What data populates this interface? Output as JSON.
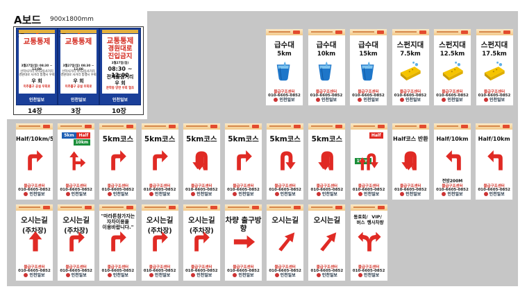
{
  "a_section": {
    "title": "A보드",
    "size": "900x1800mm",
    "boards": [
      {
        "title": "교통통제",
        "time": "3월27일(일) 08:30 ~ 12:00",
        "lines": [
          "선학사거리 학익2동사거리",
          "경원대로 사거리 통행시 우회"
        ],
        "detour": "우 회",
        "note": "미추홀구 공설 우회로",
        "caption": "14장"
      },
      {
        "title": "교통통제",
        "time": "3월27일(일) 08:30 ~ 12:00",
        "lines": [
          "선학사거리 학익2동사거리",
          "경원대로 사거리 통행시 우회"
        ],
        "detour": "우 회",
        "note": "미추홀구 공설 우회로",
        "caption": "3장"
      },
      {
        "title": "교통통제",
        "title2": "경원대로",
        "title3": "진입금지",
        "time": "3월27일(일)",
        "time_big": "08:30 ~ 12:00",
        "place": "전재울삼거리",
        "detour": "우 회",
        "note": "문학동 방면 우회 협조",
        "caption": "10장"
      }
    ],
    "footer": "인천일보"
  },
  "boards_common": {
    "org": "물급구조센터",
    "tel": "010-6605-0852",
    "footer": "인천일보"
  },
  "row1": [
    {
      "title": "급수대",
      "sub": "5km",
      "icon": "water-cup-icon"
    },
    {
      "title": "급수대",
      "sub": "10km",
      "icon": "water-cup-icon"
    },
    {
      "title": "급수대",
      "sub": "15km",
      "icon": "water-cup-icon"
    },
    {
      "title": "스펀지대",
      "sub": "7.5km",
      "icon": "sponge-icon"
    },
    {
      "title": "스펀지대",
      "sub": "12.5km",
      "icon": "sponge-icon"
    },
    {
      "title": "스펀지대",
      "sub": "17.5km",
      "icon": "sponge-icon"
    }
  ],
  "row2": [
    {
      "title": "Half/10km/5km",
      "icon": "arrow-turn-right-icon"
    },
    {
      "title": "",
      "tag1": "5km",
      "tag2": "Half",
      "tag3": "10km",
      "icon": "arrow-split-icon"
    },
    {
      "title": "5km코스",
      "icon": "arrow-turn-right-icon"
    },
    {
      "title": "5km코스",
      "icon": "arrow-turn-right-icon"
    },
    {
      "title": "5km코스",
      "icon": "arrow-u-turn-icon"
    },
    {
      "title": "5km코스",
      "icon": "arrow-turn-right-icon"
    },
    {
      "title": "5km코스",
      "icon": "arrow-u-turn-right-icon"
    },
    {
      "title": "5km코스",
      "icon": "arrow-u-turn-icon"
    },
    {
      "title": "",
      "tag1": "Half",
      "tag2": "10km",
      "icon": "arrow-double-u-icon"
    },
    {
      "title": "Half코스 반환",
      "icon": "arrow-u-turn-icon"
    },
    {
      "title": "Half/10km",
      "note": "전방200M",
      "icon": "arrow-turn-left-icon"
    },
    {
      "title": "Half/10km",
      "icon": "arrow-turn-left-icon"
    }
  ],
  "row3": [
    {
      "title": "오시는길",
      "title2": "(주차장)",
      "icon": "arrow-up-icon"
    },
    {
      "title": "오시는길",
      "title2": "(주차장)",
      "icon": "arrow-turn-right-icon"
    },
    {
      "title": "\"마라톤참가자는",
      "title2": "자차이용을",
      "title3": "이용바랍니다.\"",
      "icon": "arrow-turn-right-icon"
    },
    {
      "title": "오시는길",
      "title2": "(주차장)",
      "icon": "arrow-turn-right-icon"
    },
    {
      "title": "오시는길",
      "title2": "(주차장)",
      "icon": "arrow-turn-right-icon"
    },
    {
      "title": "차량 출구방향",
      "icon": "arrow-right-icon"
    },
    {
      "title": "오시는길",
      "icon": "arrow-diagonal-icon"
    },
    {
      "title": "오시는길",
      "icon": "arrow-diagonal-icon"
    },
    {
      "title": "동호회/",
      "title2": "버스",
      "title3": "VIP/",
      "title4": "행사차량",
      "icon": "arrow-fork-icon"
    }
  ]
}
